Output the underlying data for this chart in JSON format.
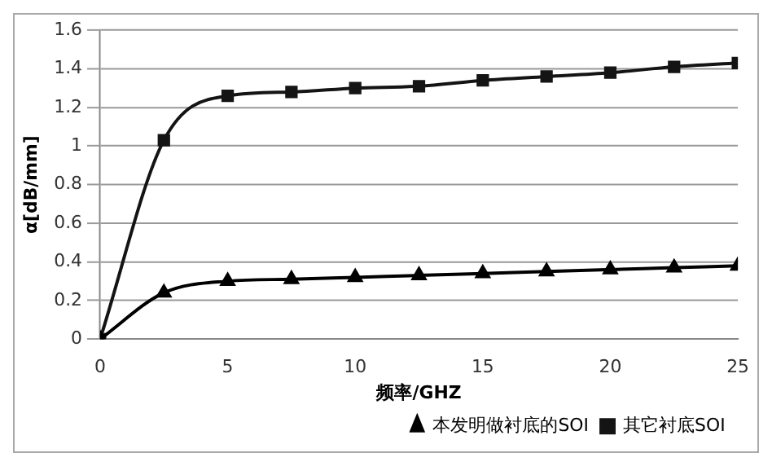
{
  "chart_data": {
    "type": "line",
    "xlabel": "频率/GHZ",
    "ylabel": "α[dB/mm]",
    "x": [
      0,
      2.5,
      5,
      7.5,
      10,
      12.5,
      15,
      17.5,
      20,
      22.5,
      25
    ],
    "series": [
      {
        "name": "本发明做衬底的SOI",
        "color": "#000000",
        "marker": "triangle",
        "values": [
          0,
          0.24,
          0.3,
          0.31,
          0.32,
          0.33,
          0.34,
          0.35,
          0.36,
          0.37,
          0.38
        ]
      },
      {
        "name": "其它衬底SOI",
        "color": "#141414",
        "marker": "square",
        "values": [
          0,
          1.03,
          1.26,
          1.28,
          1.3,
          1.31,
          1.34,
          1.36,
          1.38,
          1.41,
          1.43
        ]
      }
    ],
    "xlim": [
      0,
      25
    ],
    "xticks": [
      0,
      5,
      10,
      15,
      20,
      25
    ],
    "ylim": [
      0,
      1.6
    ],
    "yticks": [
      0,
      0.2,
      0.4,
      0.6,
      0.8,
      1,
      1.2,
      1.4,
      1.6
    ],
    "grid": "y",
    "legend": "bottom right",
    "line_style": "solid"
  }
}
